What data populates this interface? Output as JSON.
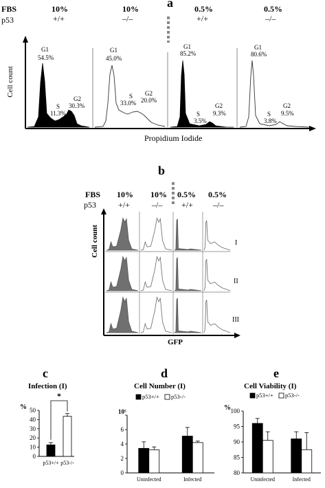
{
  "panel_a": {
    "letter": "a",
    "row_labels": [
      "FBS",
      "p53"
    ],
    "conditions": [
      {
        "fbs": "10%",
        "p53": "+/+",
        "filled": true,
        "g1": "G1",
        "g1_pct": "54.5%",
        "s": "S",
        "s_pct": "11.3%",
        "g2": "G2",
        "g2_pct": "30.3%"
      },
      {
        "fbs": "10%",
        "p53": "–/–",
        "filled": false,
        "g1": "G1",
        "g1_pct": "45.0%",
        "s": "S",
        "s_pct": "33.0%",
        "g2": "G2",
        "g2_pct": "20.0%"
      },
      {
        "fbs": "0.5%",
        "p53": "+/+",
        "filled": true,
        "g1": "G1",
        "g1_pct": "85.2%",
        "s": "S",
        "s_pct": "3.5%",
        "g2": "G2",
        "g2_pct": "9.3%"
      },
      {
        "fbs": "0.5%",
        "p53": "–/–",
        "filled": false,
        "g1": "G1",
        "g1_pct": "80.6%",
        "s": "S",
        "s_pct": "3.8%",
        "g2": "G2",
        "g2_pct": "9.5%"
      }
    ],
    "y_axis_label": "Cell count",
    "x_axis_label": "Propidium Iodide"
  },
  "panel_b": {
    "letter": "b",
    "row_labels": [
      "FBS",
      "p53"
    ],
    "conditions": [
      {
        "fbs": "10%",
        "p53": "+/+"
      },
      {
        "fbs": "10%",
        "p53": "–/–"
      },
      {
        "fbs": "0.5%",
        "p53": "+/+"
      },
      {
        "fbs": "0.5%",
        "p53": "–/–"
      }
    ],
    "replicates": [
      "I",
      "II",
      "III"
    ],
    "y_axis_label": "Cell count",
    "x_axis_label": "GFP"
  },
  "panel_c": {
    "letter": "c",
    "title": "Infection (I)",
    "y_unit": "%",
    "significance": "*"
  },
  "panel_d": {
    "letter": "d",
    "title": "Cell Number (I)",
    "y_unit": "10⁵"
  },
  "panel_e": {
    "letter": "e",
    "title": "Cell Viability (I)",
    "y_unit": "%"
  },
  "chart_data": [
    {
      "type": "bar",
      "title": "Infection (I)",
      "categories": [
        "p53+/+",
        "p53-/-"
      ],
      "values": [
        12.5,
        43.5
      ],
      "errors": [
        2.5,
        3.0
      ],
      "ylabel": "%",
      "ylim": [
        0,
        50
      ],
      "yticks": [
        0,
        10,
        20,
        30,
        40,
        50
      ],
      "colors": [
        "#000000",
        "#ffffff"
      ]
    },
    {
      "type": "bar",
      "title": "Cell Number (I)",
      "categories": [
        "Uninfected",
        "Infected"
      ],
      "series": [
        {
          "name": "p53+/+",
          "values": [
            3.4,
            5.1
          ],
          "errors": [
            0.9,
            1.2
          ],
          "color": "#000000"
        },
        {
          "name": "p53-/-",
          "values": [
            3.2,
            4.2
          ],
          "errors": [
            0.4,
            0.2
          ],
          "color": "#ffffff"
        }
      ],
      "ylabel": "10⁵",
      "ylim": [
        0,
        8
      ],
      "yticks": [
        0,
        2,
        4,
        6,
        8
      ],
      "legend": "top"
    },
    {
      "type": "bar",
      "title": "Cell Viability (I)",
      "categories": [
        "Uninfected",
        "Infected"
      ],
      "series": [
        {
          "name": "p53+/+",
          "values": [
            96,
            91
          ],
          "errors": [
            1.6,
            2.3
          ],
          "color": "#000000"
        },
        {
          "name": "p53-/-",
          "values": [
            90.5,
            87.5
          ],
          "errors": [
            2.8,
            5.5
          ],
          "color": "#ffffff"
        }
      ],
      "ylabel": "%",
      "ylim": [
        80,
        100
      ],
      "yticks": [
        80,
        85,
        90,
        95,
        100
      ],
      "legend": "top"
    }
  ]
}
